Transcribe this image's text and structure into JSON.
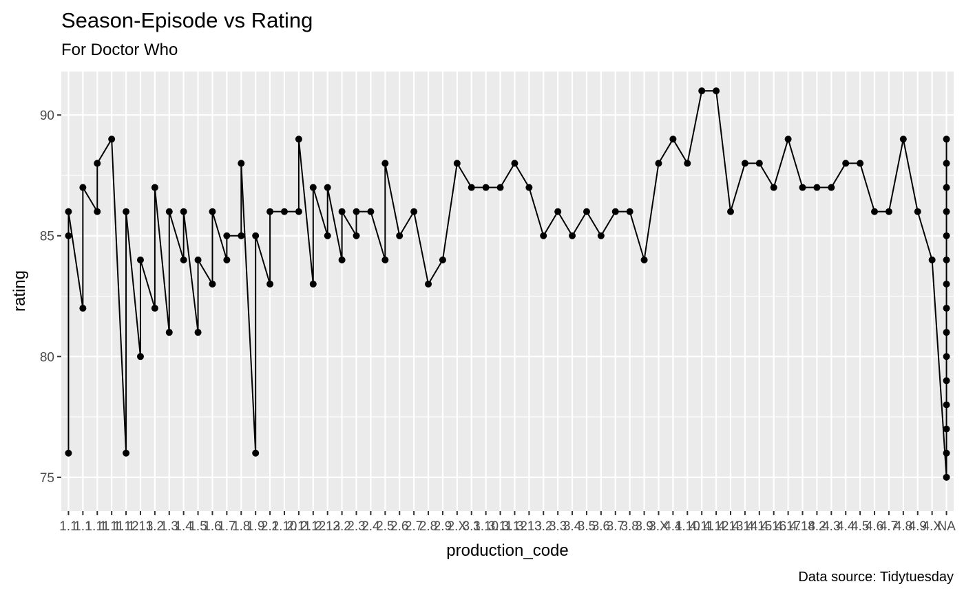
{
  "chart_data": {
    "type": "line",
    "title": "Season-Episode vs Rating",
    "subtitle": "For Doctor Who",
    "caption": "Data source: Tidytuesday",
    "xlabel": "production_code",
    "ylabel": "rating",
    "ylim": [
      73.6,
      91.8
    ],
    "y_ticks": [
      75,
      80,
      85,
      90
    ],
    "grid": true,
    "series_points": true,
    "categories": [
      "1.1",
      "1.1",
      "1.11",
      "1.11",
      "1.12",
      "1.13",
      "1.2",
      "1.3",
      "1.4",
      "1.5",
      "1.6",
      "1.7",
      "1.8",
      "1.9",
      "2.1",
      "2.10",
      "2.11",
      "2.12",
      "2.13",
      "2.2",
      "2.3",
      "2.4",
      "2.5",
      "2.6",
      "2.7",
      "2.8",
      "2.9",
      "2.X",
      "3.1",
      "3.10",
      "3.11",
      "3.12",
      "3.13",
      "3.2",
      "3.3",
      "3.4",
      "3.5",
      "3.6",
      "3.7",
      "3.8",
      "3.9",
      "3.X",
      "4.1",
      "4.10",
      "4.11",
      "4.12",
      "4.13",
      "4.14",
      "4.15",
      "4.16",
      "4.17",
      "4.18",
      "4.2",
      "4.3",
      "4.4",
      "4.5",
      "4.6",
      "4.7",
      "4.8",
      "4.9",
      "4.X",
      "NA"
    ],
    "values": [
      [
        76,
        85,
        86
      ],
      [
        82,
        87
      ],
      [
        86,
        88
      ],
      [
        89
      ],
      [
        76,
        86
      ],
      [
        80,
        84
      ],
      [
        82,
        87
      ],
      [
        81,
        86
      ],
      [
        84,
        86
      ],
      [
        81,
        84
      ],
      [
        83,
        86
      ],
      [
        84,
        85
      ],
      [
        85,
        88
      ],
      [
        76,
        85
      ],
      [
        83,
        86
      ],
      [
        86
      ],
      [
        86,
        89
      ],
      [
        83,
        87
      ],
      [
        85,
        87
      ],
      [
        84,
        86
      ],
      [
        85,
        86
      ],
      [
        86
      ],
      [
        84,
        88
      ],
      [
        85
      ],
      [
        86
      ],
      [
        83
      ],
      [
        84
      ],
      [
        88
      ],
      [
        87
      ],
      [
        87
      ],
      [
        87
      ],
      [
        88
      ],
      [
        87
      ],
      [
        85
      ],
      [
        86
      ],
      [
        85
      ],
      [
        86
      ],
      [
        85
      ],
      [
        86
      ],
      [
        86
      ],
      [
        84
      ],
      [
        88
      ],
      [
        89
      ],
      [
        88
      ],
      [
        91
      ],
      [
        91
      ],
      [
        86
      ],
      [
        88
      ],
      [
        88
      ],
      [
        87
      ],
      [
        89
      ],
      [
        87
      ],
      [
        87
      ],
      [
        87
      ],
      [
        88
      ],
      [
        88
      ],
      [
        86
      ],
      [
        86
      ],
      [
        89
      ],
      [
        86
      ],
      [
        84
      ],
      [
        75,
        76,
        77,
        78,
        79,
        80,
        81,
        82,
        83,
        84,
        85,
        86,
        87,
        88,
        89
      ]
    ]
  }
}
